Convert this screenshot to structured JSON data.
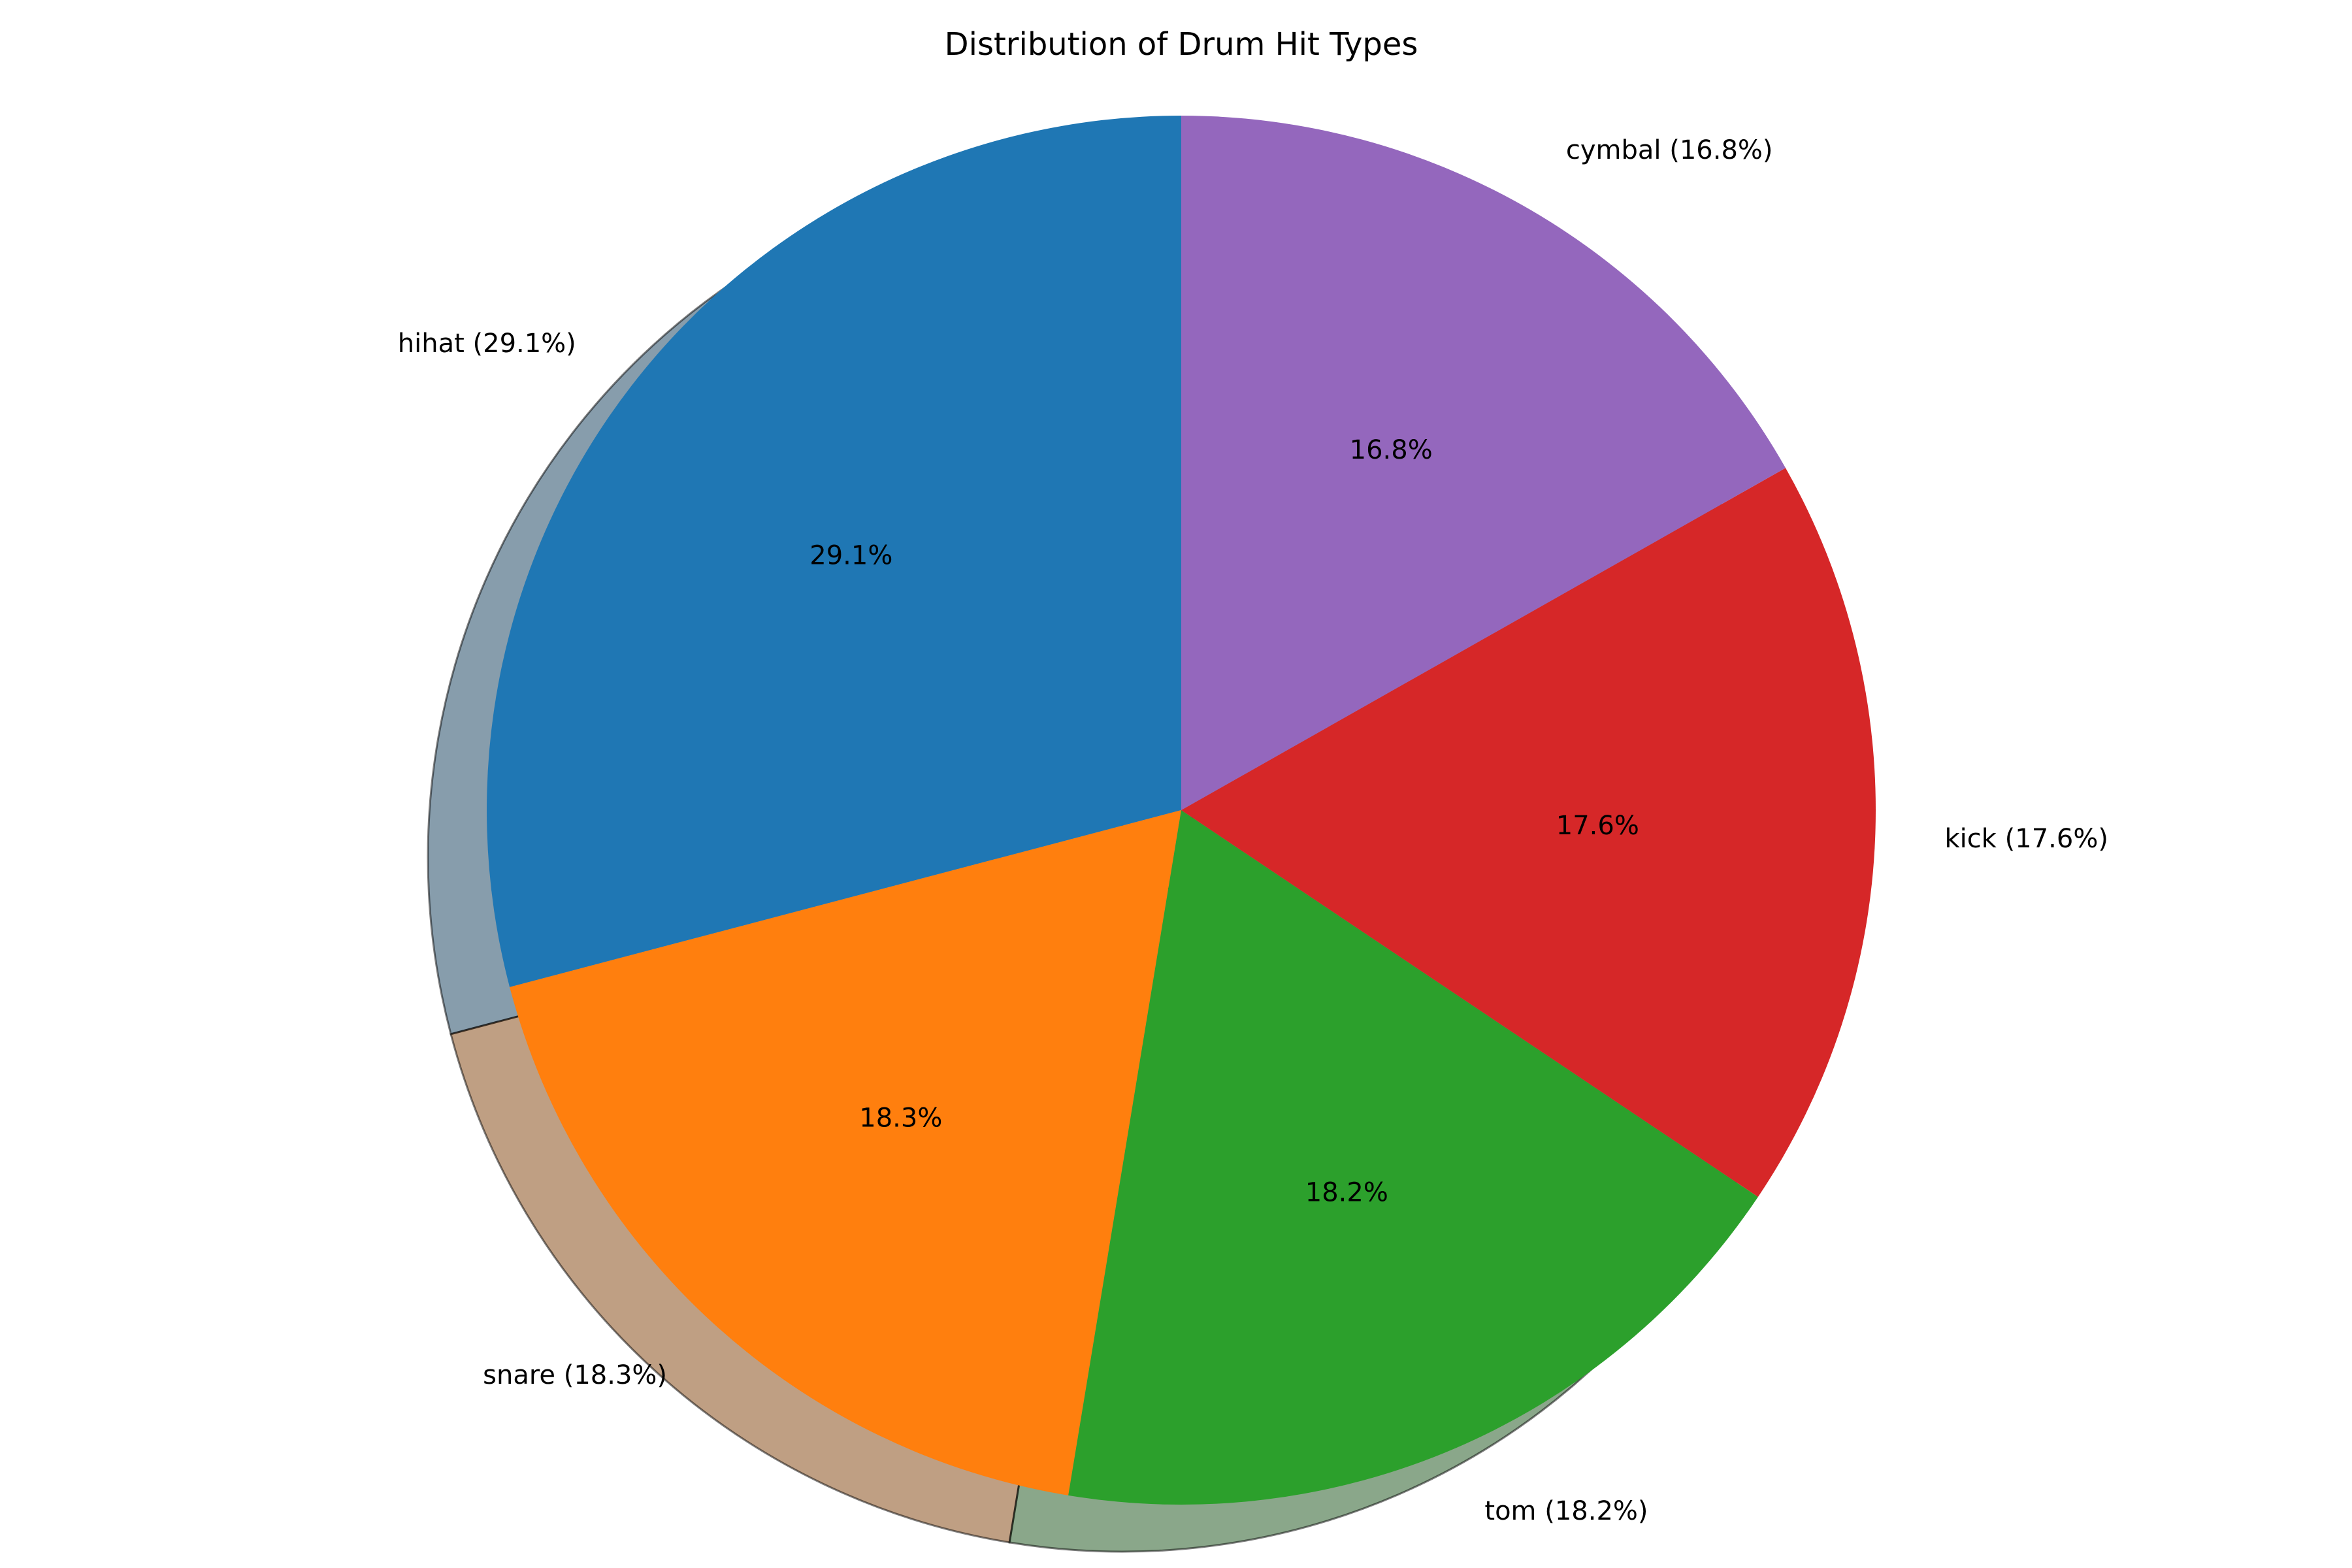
{
  "chart_data": {
    "type": "pie",
    "title": "Distribution of Drum Hit Types",
    "start_angle_deg": 90,
    "direction": "counterclockwise",
    "shadow": true,
    "slices": [
      {
        "label": "hihat",
        "value": 29.1,
        "outer_label": "hihat (29.1%)",
        "pct_label": "29.1%",
        "color": "#1f77b4"
      },
      {
        "label": "snare",
        "value": 18.3,
        "outer_label": "snare (18.3%)",
        "pct_label": "18.3%",
        "color": "#ff7f0e"
      },
      {
        "label": "tom",
        "value": 18.2,
        "outer_label": "tom (18.2%)",
        "pct_label": "18.2%",
        "color": "#2ca02c"
      },
      {
        "label": "kick",
        "value": 17.6,
        "outer_label": "kick (17.6%)",
        "pct_label": "17.6%",
        "color": "#d62728"
      },
      {
        "label": "cymbal",
        "value": 16.8,
        "outer_label": "cymbal (16.8%)",
        "pct_label": "16.8%",
        "color": "#9467bd"
      }
    ]
  }
}
